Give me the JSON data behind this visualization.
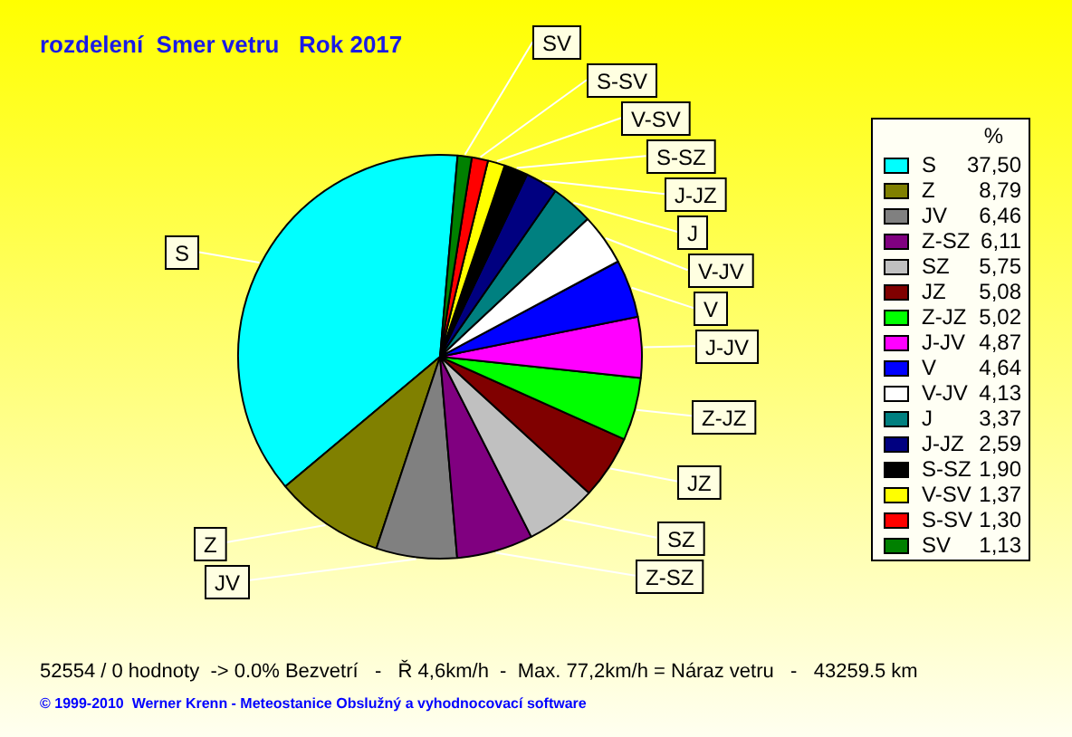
{
  "chart_data": {
    "type": "pie",
    "title": "rozdelení  Smer vetru   Rok 2017",
    "categories": [
      "S",
      "Z",
      "JV",
      "Z-SZ",
      "SZ",
      "JZ",
      "Z-JZ",
      "J-JV",
      "V",
      "V-JV",
      "J",
      "J-JZ",
      "S-SZ",
      "V-SV",
      "S-SV",
      "SV"
    ],
    "values": [
      37.5,
      8.79,
      6.46,
      6.11,
      5.75,
      5.08,
      5.02,
      4.87,
      4.64,
      4.13,
      3.37,
      2.59,
      1.9,
      1.37,
      1.3,
      1.13
    ],
    "colors": [
      "#00ffff",
      "#808000",
      "#808080",
      "#800080",
      "#c0c0c0",
      "#800000",
      "#00ff00",
      "#ff00ff",
      "#0000ff",
      "#ffffff",
      "#008080",
      "#000080",
      "#000000",
      "#ffff00",
      "#ff0000",
      "#008000"
    ],
    "legend": "right",
    "legend_title": "%",
    "value_labels": [
      "37,50",
      "8,79",
      "6,46",
      "6,11",
      "5,75",
      "5,08",
      "5,02",
      "4,87",
      "4,64",
      "4,13",
      "3,37",
      "2,59",
      "1,90",
      "1,37",
      "1,30",
      "1,13"
    ],
    "annotations": [
      "52554 / 0 hodnoty  -> 0.0% Bezvetrí   -   Ř 4,6km/h  -  Max. 77,2km/h = Náraz vetru   -   43259.5 km",
      "© 1999-2010  Werner Krenn - Meteostanice Obslužný a vyhodnocovací software"
    ]
  }
}
